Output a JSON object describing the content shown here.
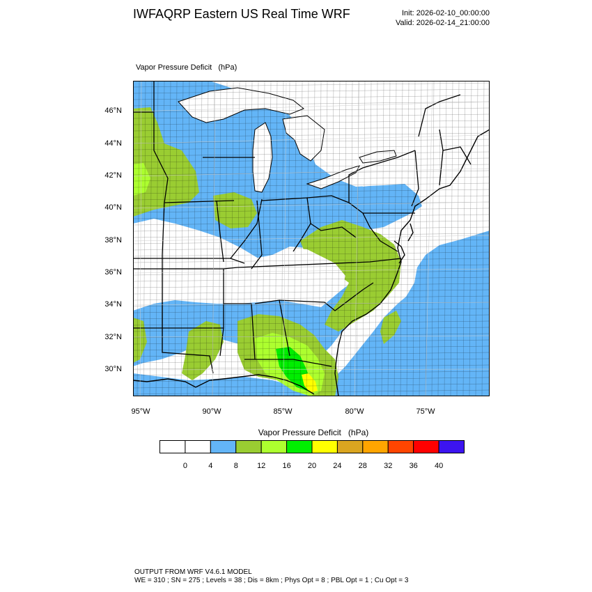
{
  "header": {
    "title": "IWFAQRP Eastern US Real Time WRF",
    "init": "Init: 2026-02-10_00:00:00",
    "valid": "Valid: 2026-02-14_21:00:00"
  },
  "map": {
    "subtitle": "Vapor Pressure Deficit   (hPa)",
    "lat_ticks": [
      "46°N",
      "44°N",
      "42°N",
      "40°N",
      "38°N",
      "36°N",
      "34°N",
      "32°N",
      "30°N"
    ],
    "lon_ticks": [
      "95°W",
      "90°W",
      "85°W",
      "80°W",
      "75°W"
    ],
    "colors": {
      "land_white": "#ffffff",
      "blue_4_8": "#63b5f7",
      "green_8_12": "#9acd32",
      "lightgreen_12_16": "#adff2f",
      "green_16_20": "#00ee00",
      "yellow_20_24": "#ffff00",
      "lakes": "#ffffff"
    }
  },
  "colorbar": {
    "title": "Vapor Pressure Deficit   (hPa)",
    "labels": [
      "0",
      "4",
      "8",
      "12",
      "16",
      "20",
      "24",
      "28",
      "32",
      "36",
      "40"
    ],
    "colors": [
      "#ffffff",
      "#ffffff",
      "#63b5f7",
      "#9acd32",
      "#adff2f",
      "#00ee00",
      "#ffff00",
      "#daa520",
      "#ffa500",
      "#ff4500",
      "#ff0000",
      "#3c14f0"
    ]
  },
  "footer": {
    "line1": "OUTPUT FROM WRF V4.6.1 MODEL",
    "line2": "WE = 310 ; SN = 275 ; Levels = 38 ; Dis = 8km ; Phys Opt = 8 ; PBL Opt = 1 ; Cu Opt = 3"
  }
}
